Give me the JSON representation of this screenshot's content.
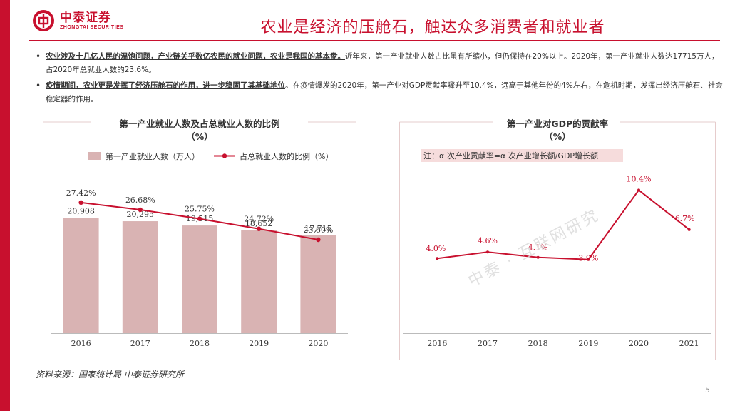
{
  "brand": {
    "name_cn": "中泰证券",
    "name_en": "ZHONGTAI SECURITIES"
  },
  "title": "农业是经济的压舱石，触达众多消费者和就业者",
  "bullets": [
    {
      "bold": "农业涉及十几亿人民的温饱问题，产业链关乎数亿农民的就业问题，农业是我国的基本盘。",
      "text": "近年来，第一产业就业人数占比虽有所缩小，但仍保持在20%以上。2020年，第一产业就业人数达17715万人，占2020年总就业人数的23.6%。"
    },
    {
      "bold": "疫情期间，农业更是发挥了经济压舱石的作用，进一步稳固了其基础地位",
      "text": "。在疫情爆发的2020年，第一产业对GDP贡献率骤升至10.4%，远高于其他年份的4%左右，在危机时期，发挥出经济压舱石、社会稳定器的作用。"
    }
  ],
  "chart_data": [
    {
      "type": "bar",
      "title": "第一产业就业人数及占总就业人数的比例",
      "title_unit": "（%）",
      "categories": [
        "2016",
        "2017",
        "2018",
        "2019",
        "2020"
      ],
      "series": [
        {
          "name": "第一产业就业人数（万人）",
          "type": "bar",
          "values": [
            20908,
            20295,
            19515,
            18652,
            17715
          ],
          "labels": [
            "20,908",
            "20,295",
            "19,515",
            "18,652",
            "17,715"
          ],
          "color": "#d9b3b3"
        },
        {
          "name": "占总就业人数的比例（%）",
          "type": "line",
          "values": [
            27.42,
            26.68,
            25.75,
            24.72,
            23.6
          ],
          "labels": [
            "27.42%",
            "26.68%",
            "25.75%",
            "24.72%",
            "23.60%"
          ],
          "color": "#c8102e"
        }
      ],
      "legend": "top",
      "bar_ylim": [
        0,
        30000
      ],
      "line_ylim": [
        14,
        31
      ]
    },
    {
      "type": "line",
      "title": "第一产业对GDP的贡献率",
      "title_unit": "（%）",
      "note": "注：α 次产业贡献率=α 次产业增长额/GDP增长额",
      "categories": [
        "2016",
        "2017",
        "2018",
        "2019",
        "2020",
        "2021"
      ],
      "series": [
        {
          "name": "第一产业对GDP的贡献率",
          "values": [
            4.0,
            4.6,
            4.1,
            3.9,
            10.4,
            6.7
          ],
          "labels": [
            "4.0%",
            "4.6%",
            "4.1%",
            "3.9%",
            "10.4%",
            "6.7%"
          ],
          "color": "#c8102e"
        }
      ],
      "ylim": [
        -3,
        12.5
      ]
    }
  ],
  "source": "资料来源：国家统计局 中泰证券研究所",
  "watermark": "中泰 · 互联网研究",
  "page_number": "5",
  "colors": {
    "accent": "#c8102e",
    "bar": "#d9b3b3",
    "panel_border": "#e6cccc",
    "note_bg": "#f6dcdc"
  }
}
